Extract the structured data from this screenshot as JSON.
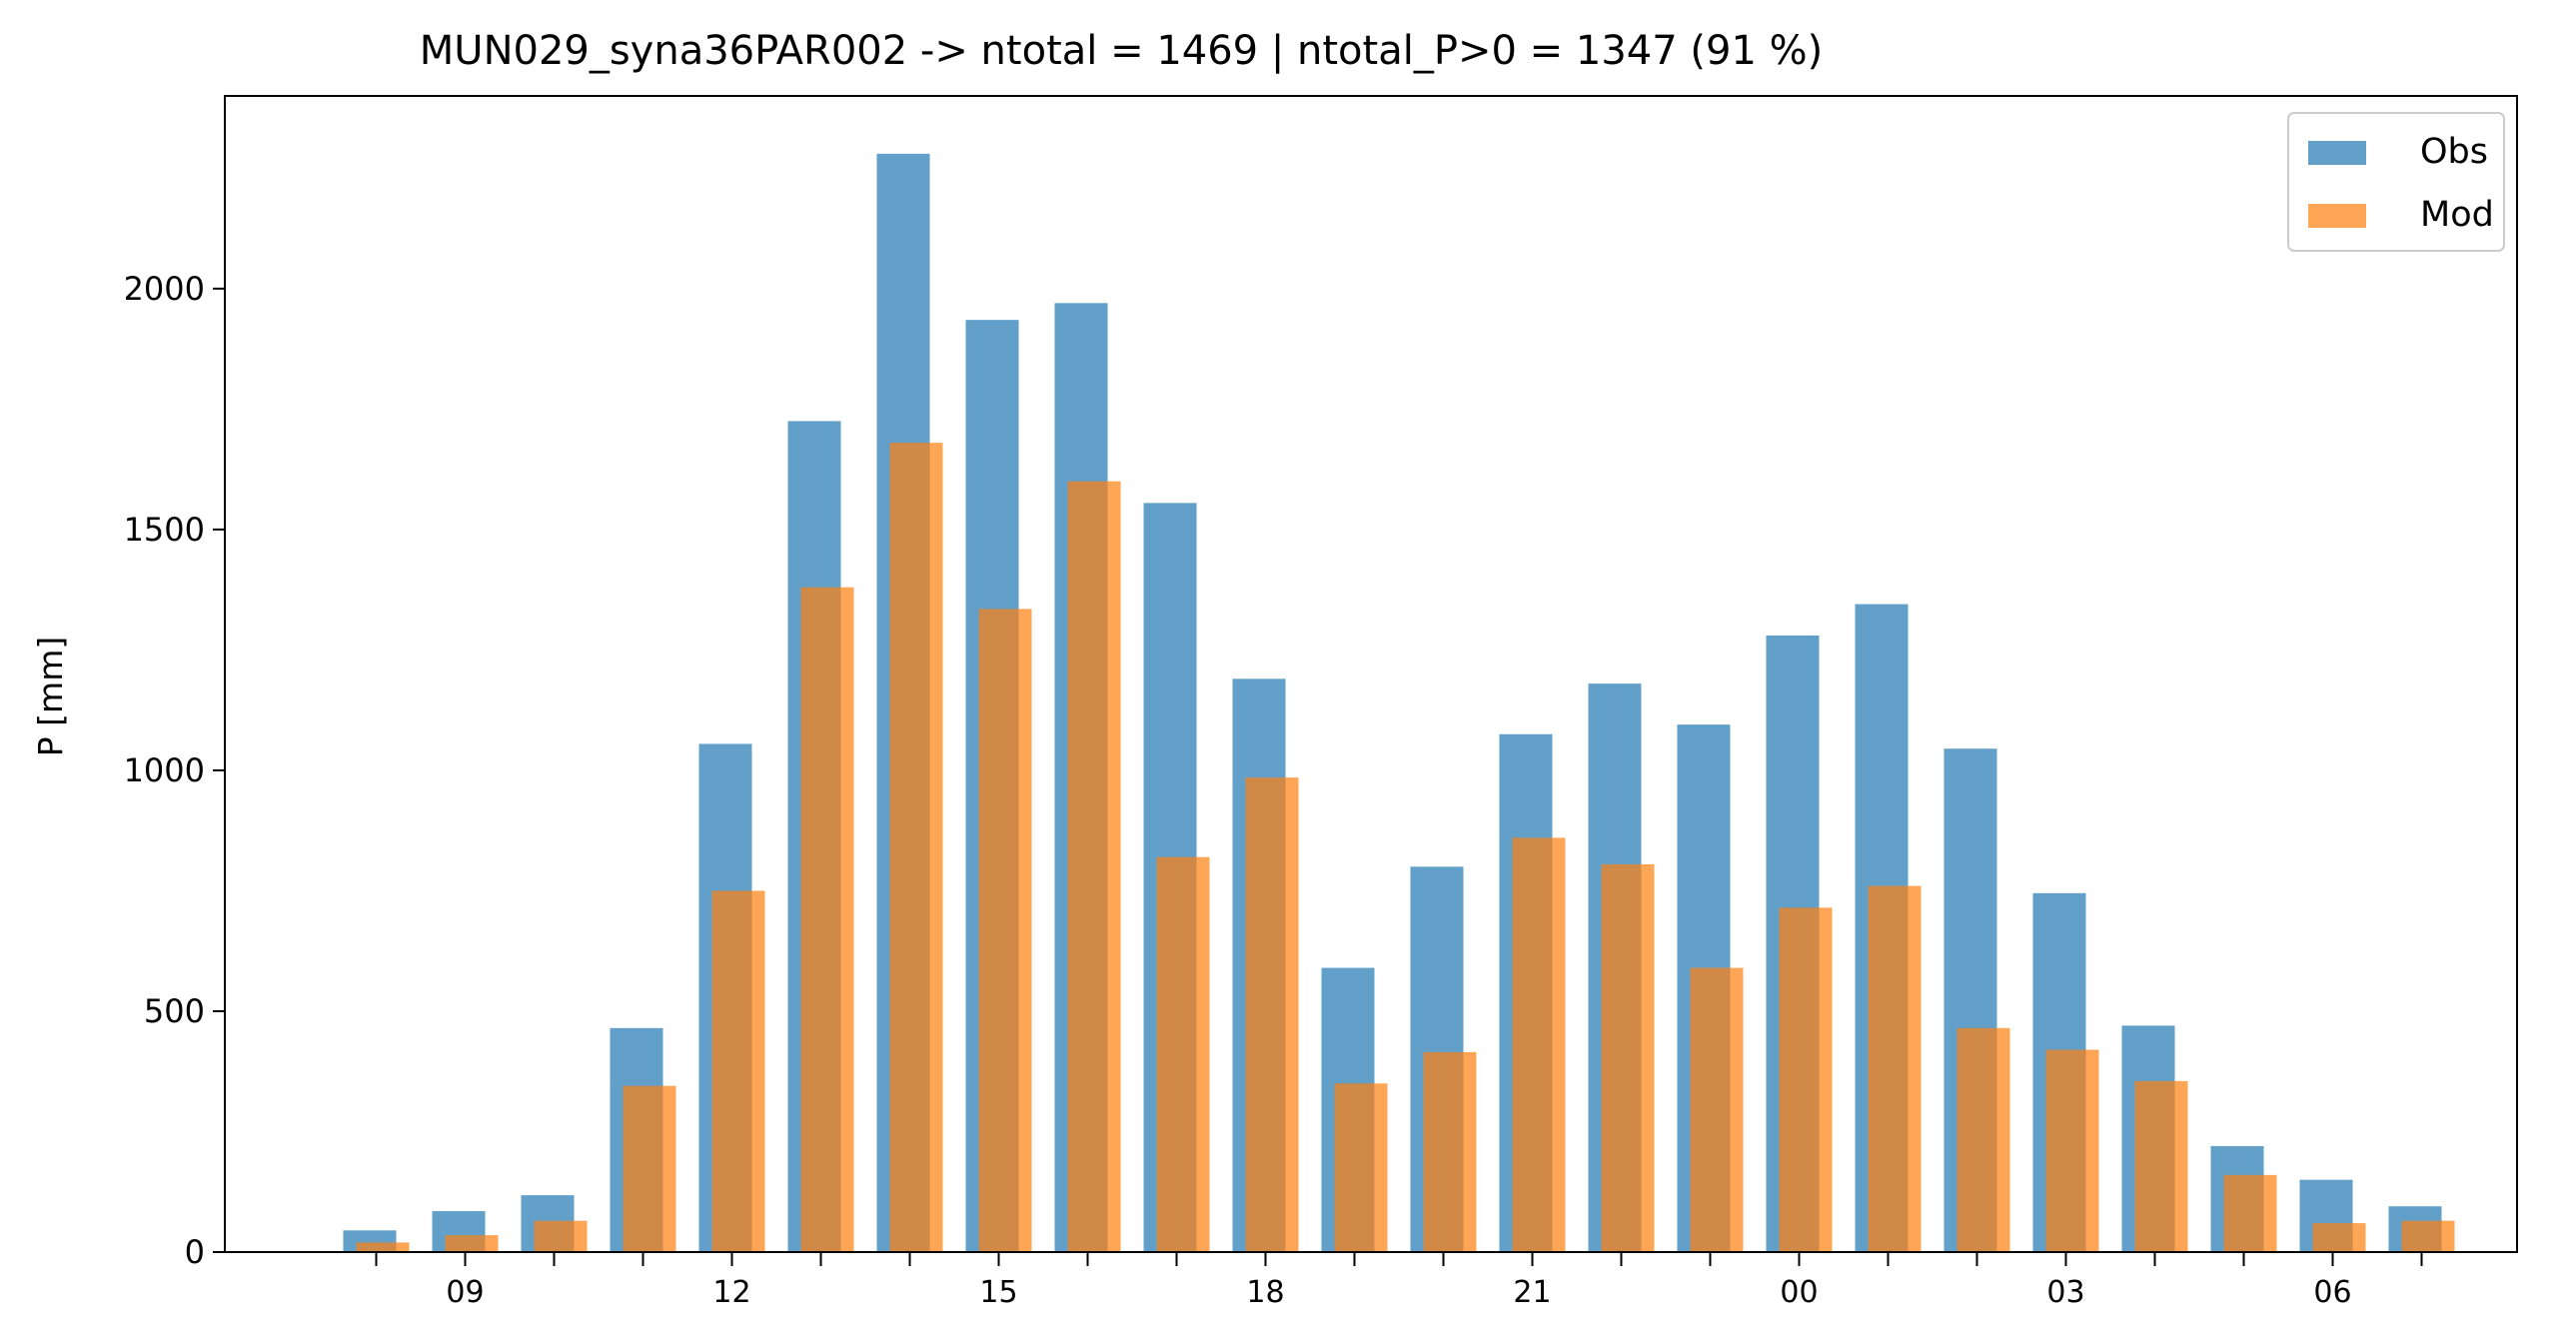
{
  "chart_data": {
    "type": "bar",
    "title": "MUN029_syna36PAR002 -> ntotal = 1469 | ntotal_P>0 = 1347 (91 %)",
    "xlabel": "",
    "ylabel": "P [mm]",
    "hours": [
      8,
      9,
      10,
      11,
      12,
      13,
      14,
      15,
      16,
      17,
      18,
      19,
      20,
      21,
      22,
      23,
      0,
      1,
      2,
      3,
      4,
      5,
      6,
      7
    ],
    "xtick_labels": [
      "09",
      "12",
      "15",
      "18",
      "21",
      "00",
      "03",
      "06"
    ],
    "xtick_label_hours": [
      9,
      12,
      15,
      18,
      21,
      0,
      3,
      6
    ],
    "ylim": [
      0,
      2400
    ],
    "yticks": [
      0,
      500,
      1000,
      1500,
      2000
    ],
    "grid": false,
    "legend_position": "top-right",
    "series": [
      {
        "name": "Obs",
        "color": "#1f77b4",
        "values": [
          45,
          85,
          118,
          465,
          1055,
          1725,
          2280,
          1935,
          1970,
          1555,
          1190,
          590,
          800,
          1075,
          1180,
          1095,
          1280,
          1345,
          1045,
          745,
          470,
          220,
          150,
          95
        ]
      },
      {
        "name": "Mod",
        "color": "#ff7f0e",
        "values": [
          20,
          35,
          65,
          345,
          750,
          1380,
          1680,
          1335,
          1600,
          820,
          985,
          350,
          415,
          860,
          805,
          590,
          715,
          760,
          465,
          420,
          355,
          160,
          60,
          65
        ]
      }
    ]
  }
}
